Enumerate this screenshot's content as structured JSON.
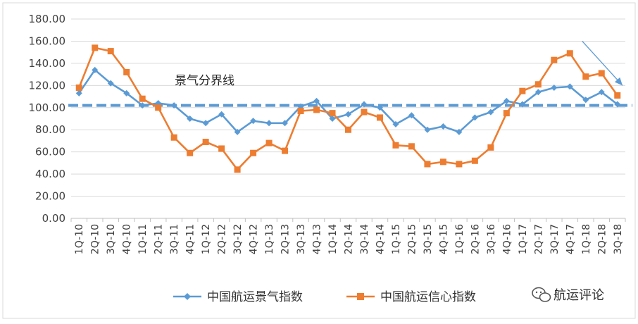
{
  "chart_data": {
    "type": "line",
    "title": "",
    "xlabel": "",
    "ylabel": "",
    "ylim": [
      0,
      180
    ],
    "y_ticks": [
      "0.00",
      "20.00",
      "40.00",
      "60.00",
      "80.00",
      "100.00",
      "120.00",
      "140.00",
      "160.00",
      "180.00"
    ],
    "grid": "horizontal",
    "legend_position": "bottom",
    "categories": [
      "1Q-10",
      "2Q-10",
      "3Q-10",
      "4Q-10",
      "1Q-11",
      "2Q-11",
      "3Q-11",
      "4Q-11",
      "1Q-12",
      "2Q-12",
      "3Q-12",
      "4Q-12",
      "1Q-13",
      "2Q-13",
      "3Q-13",
      "4Q-13",
      "1Q-14",
      "2Q-14",
      "3Q-14",
      "4Q-14",
      "1Q-15",
      "2Q-15",
      "3Q-15",
      "4Q-15",
      "1Q-16",
      "2Q-16",
      "3Q-16",
      "4Q-16",
      "1Q-17",
      "2Q-17",
      "3Q-17",
      "4Q-17",
      "1Q-18",
      "2Q-18",
      "3Q-18"
    ],
    "series": [
      {
        "name": "中国航运景气指数",
        "color": "#5b9bd5",
        "marker": "diamond",
        "values": [
          113,
          134,
          122,
          113,
          102,
          104,
          102,
          90,
          86,
          94,
          78,
          88,
          86,
          86,
          101,
          106,
          90,
          94,
          103,
          100,
          85,
          93,
          80,
          83,
          78,
          91,
          96,
          106,
          103,
          114,
          118,
          119,
          107,
          114,
          103
        ]
      },
      {
        "name": "中国航运信心指数",
        "color": "#ed7d31",
        "marker": "square",
        "values": [
          118,
          154,
          151,
          132,
          108,
          100,
          73,
          59,
          69,
          63,
          44,
          59,
          68,
          61,
          97,
          98,
          95,
          80,
          96,
          91,
          66,
          65,
          49,
          51,
          49,
          52,
          64,
          95,
          115,
          121,
          143,
          149,
          128,
          131,
          111
        ]
      }
    ],
    "threshold": {
      "label": "景气分界线",
      "value": 102,
      "color": "#5b9bd5"
    },
    "watermark": "航运评论"
  }
}
